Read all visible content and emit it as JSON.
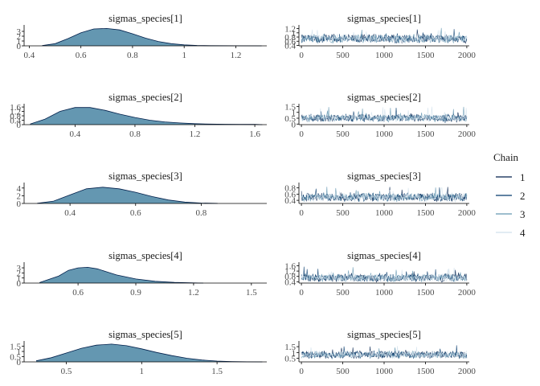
{
  "legend": {
    "title": "Chain",
    "items": [
      {
        "label": "1",
        "color": "#011f4b"
      },
      {
        "label": "2",
        "color": "#03396c"
      },
      {
        "label": "3",
        "color": "#6497b1"
      },
      {
        "label": "4",
        "color": "#d1e1ec"
      }
    ]
  },
  "colors": {
    "density_fill": "#6497b1",
    "density_line": "#011f4b",
    "axis": "#000000"
  },
  "chart_data": [
    {
      "type": "area",
      "title": "sigmas_species[1]",
      "x_ticks": [
        0.4,
        0.6,
        0.8,
        1.0,
        1.2
      ],
      "y_ticks": [
        0,
        1,
        2,
        3
      ],
      "xlim": [
        0.38,
        1.32
      ],
      "ylim": [
        0,
        4.0
      ],
      "curve": {
        "x": [
          0.45,
          0.5,
          0.55,
          0.6,
          0.65,
          0.7,
          0.75,
          0.8,
          0.85,
          0.9,
          0.95,
          1.0,
          1.05,
          1.1,
          1.2,
          1.3
        ],
        "y": [
          0.05,
          0.45,
          1.5,
          2.7,
          3.5,
          3.6,
          3.3,
          2.5,
          1.6,
          0.9,
          0.45,
          0.2,
          0.08,
          0.03,
          0.01,
          0
        ]
      }
    },
    {
      "type": "line",
      "title": "sigmas_species[1]",
      "x_ticks": [
        0,
        500,
        1000,
        1500,
        2000
      ],
      "y_ticks": [
        0.4,
        0.6,
        0.8,
        1.0,
        1.2
      ],
      "xlim": [
        -30,
        2030
      ],
      "ylim": [
        0.38,
        1.3
      ],
      "trace": {
        "center": 0.72,
        "spread": 0.2,
        "min": 0.45,
        "max": 1.25
      }
    },
    {
      "type": "area",
      "title": "sigmas_species[2]",
      "x_ticks": [
        0.4,
        0.8,
        1.2,
        1.6
      ],
      "y_ticks": [
        0.0,
        0.4,
        0.8,
        1.2,
        1.6
      ],
      "xlim": [
        0.06,
        1.68
      ],
      "ylim": [
        0,
        1.75
      ],
      "curve": {
        "x": [
          0.1,
          0.2,
          0.3,
          0.4,
          0.5,
          0.6,
          0.7,
          0.8,
          0.9,
          1.0,
          1.1,
          1.2,
          1.3,
          1.4,
          1.5,
          1.6,
          1.65
        ],
        "y": [
          0.05,
          0.5,
          1.2,
          1.55,
          1.55,
          1.3,
          0.95,
          0.65,
          0.4,
          0.25,
          0.15,
          0.09,
          0.05,
          0.04,
          0.03,
          0.02,
          0
        ]
      }
    },
    {
      "type": "line",
      "title": "sigmas_species[2]",
      "x_ticks": [
        0,
        500,
        1000,
        1500,
        2000
      ],
      "y_ticks": [
        0.0,
        0.5,
        1.0,
        1.5
      ],
      "xlim": [
        -30,
        2030
      ],
      "ylim": [
        -0.05,
        1.6
      ],
      "trace": {
        "center": 0.52,
        "spread": 0.3,
        "min": 0.08,
        "max": 1.55
      }
    },
    {
      "type": "area",
      "title": "sigmas_species[3]",
      "x_ticks": [
        0.4,
        0.6,
        0.8
      ],
      "y_ticks": [
        0,
        2,
        4
      ],
      "xlim": [
        0.26,
        1.0
      ],
      "ylim": [
        0,
        5.0
      ],
      "curve": {
        "x": [
          0.3,
          0.35,
          0.4,
          0.45,
          0.5,
          0.55,
          0.6,
          0.65,
          0.7,
          0.75,
          0.8,
          0.85
        ],
        "y": [
          0.05,
          0.6,
          2.2,
          3.8,
          4.2,
          3.8,
          2.9,
          1.8,
          0.9,
          0.35,
          0.1,
          0.02
        ]
      }
    },
    {
      "type": "line",
      "title": "sigmas_species[3]",
      "x_ticks": [
        0,
        500,
        1000,
        1500,
        2000
      ],
      "y_ticks": [
        0.4,
        0.6,
        0.8
      ],
      "xlim": [
        -30,
        2030
      ],
      "ylim": [
        0.3,
        0.92
      ],
      "trace": {
        "center": 0.5,
        "spread": 0.13,
        "min": 0.33,
        "max": 0.85
      }
    },
    {
      "type": "area",
      "title": "sigmas_species[4]",
      "x_ticks": [
        0.6,
        0.9,
        1.2,
        1.5
      ],
      "y_ticks": [
        0,
        1,
        2,
        3
      ],
      "xlim": [
        0.32,
        1.58
      ],
      "ylim": [
        0,
        3.8
      ],
      "curve": {
        "x": [
          0.4,
          0.5,
          0.55,
          0.6,
          0.65,
          0.7,
          0.75,
          0.8,
          0.9,
          1.0,
          1.1,
          1.2,
          1.25
        ],
        "y": [
          0.1,
          1.4,
          2.5,
          3.0,
          3.1,
          2.8,
          2.2,
          1.6,
          0.8,
          0.35,
          0.12,
          0.03,
          0
        ]
      }
    },
    {
      "type": "line",
      "title": "sigmas_species[4]",
      "x_ticks": [
        0,
        500,
        1000,
        1500,
        2000
      ],
      "y_ticks": [
        0.4,
        0.8,
        1.2,
        1.6
      ],
      "xlim": [
        -30,
        2030
      ],
      "ylim": [
        0.3,
        1.75
      ],
      "trace": {
        "center": 0.7,
        "spread": 0.3,
        "min": 0.38,
        "max": 1.6
      }
    },
    {
      "type": "area",
      "title": "sigmas_species[5]",
      "x_ticks": [
        0.5,
        1.0,
        1.5
      ],
      "y_ticks": [
        0.0,
        0.5,
        1.0,
        1.5
      ],
      "xlim": [
        0.22,
        1.83
      ],
      "ylim": [
        0,
        1.85
      ],
      "curve": {
        "x": [
          0.3,
          0.4,
          0.5,
          0.6,
          0.7,
          0.8,
          0.9,
          1.0,
          1.1,
          1.2,
          1.3,
          1.4,
          1.5,
          1.6,
          1.7,
          1.8
        ],
        "y": [
          0.1,
          0.4,
          0.85,
          1.3,
          1.6,
          1.7,
          1.55,
          1.25,
          0.9,
          0.6,
          0.35,
          0.18,
          0.08,
          0.03,
          0.01,
          0
        ]
      }
    },
    {
      "type": "line",
      "title": "sigmas_species[5]",
      "x_ticks": [
        0,
        500,
        1000,
        1500,
        2000
      ],
      "y_ticks": [
        0.5,
        1.0,
        1.5
      ],
      "xlim": [
        -30,
        2030
      ],
      "ylim": [
        0.2,
        1.85
      ],
      "trace": {
        "center": 0.82,
        "spread": 0.3,
        "min": 0.35,
        "max": 1.65
      }
    }
  ]
}
